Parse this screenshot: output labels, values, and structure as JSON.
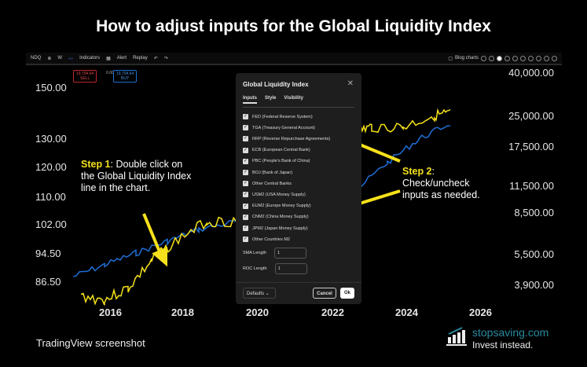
{
  "title": "How to adjust inputs for the Global Liquidity Index",
  "toolbar": {
    "symbol": "NDQ",
    "interval": "W",
    "indicators": "Indicators",
    "alert": "Alert",
    "replay": "Replay",
    "layout": "Blog charts",
    "layout_sub": "Save"
  },
  "prices": {
    "sell": "19,704.64",
    "sell_label": "SELL",
    "spread": "0.00",
    "buy": "19,704.64",
    "buy_label": "BUY"
  },
  "left_axis": [
    "150.00",
    "130.00",
    "120.00",
    "110.00",
    "102.00",
    "94.50",
    "86.50"
  ],
  "right_axis": [
    "40,000.00",
    "25,000.00",
    "17,500.00",
    "11,500.00",
    "8,500.00",
    "5,500.00",
    "3,900.00"
  ],
  "x_axis": [
    "2016",
    "2018",
    "2020",
    "2022",
    "2024",
    "2026"
  ],
  "colors": {
    "index_line": "#f5e11b",
    "nasdaq_line": "#1f6fd6",
    "accent": "#f5e11b"
  },
  "dialog": {
    "title": "Global Liquidity Index",
    "tabs": [
      "Inputs",
      "Style",
      "Visibility"
    ],
    "inputs": [
      {
        "label": "FED (Federal Reserve System)",
        "checked": true
      },
      {
        "label": "TGA (Treasury General Account)",
        "checked": true
      },
      {
        "label": "RRP (Reverse Repurchase Agreements)",
        "checked": true
      },
      {
        "label": "ECB (European Central Bank)",
        "checked": true
      },
      {
        "label": "PBC (People's Bank of China)",
        "checked": true
      },
      {
        "label": "BOJ (Bank of Japan)",
        "checked": true
      },
      {
        "label": "Other Central Banks",
        "checked": true
      },
      {
        "label": "USM2 (USA Money Supply)",
        "checked": true
      },
      {
        "label": "EUM2 (Europe Money Supply)",
        "checked": true
      },
      {
        "label": "CNM2 (China Money Supply)",
        "checked": true
      },
      {
        "label": "JPM2 (Japan Money Supply)",
        "checked": true
      },
      {
        "label": "Other Countries M2",
        "checked": true
      }
    ],
    "sma_label": "SMA Length",
    "sma_value": "1",
    "roc_label": "ROC Length",
    "roc_value": "1",
    "defaults": "Defaults",
    "cancel": "Cancel",
    "ok": "Ok"
  },
  "step1": {
    "head": "Step 1",
    "text": ": Double click on the Global Liquidity Index line in the chart."
  },
  "step2": {
    "head": "Step 2",
    "text": ": Check/uncheck inputs as needed."
  },
  "source": "TradingView screenshot",
  "logo": {
    "name": "stopsaving.com",
    "tagline": "Invest instead."
  }
}
